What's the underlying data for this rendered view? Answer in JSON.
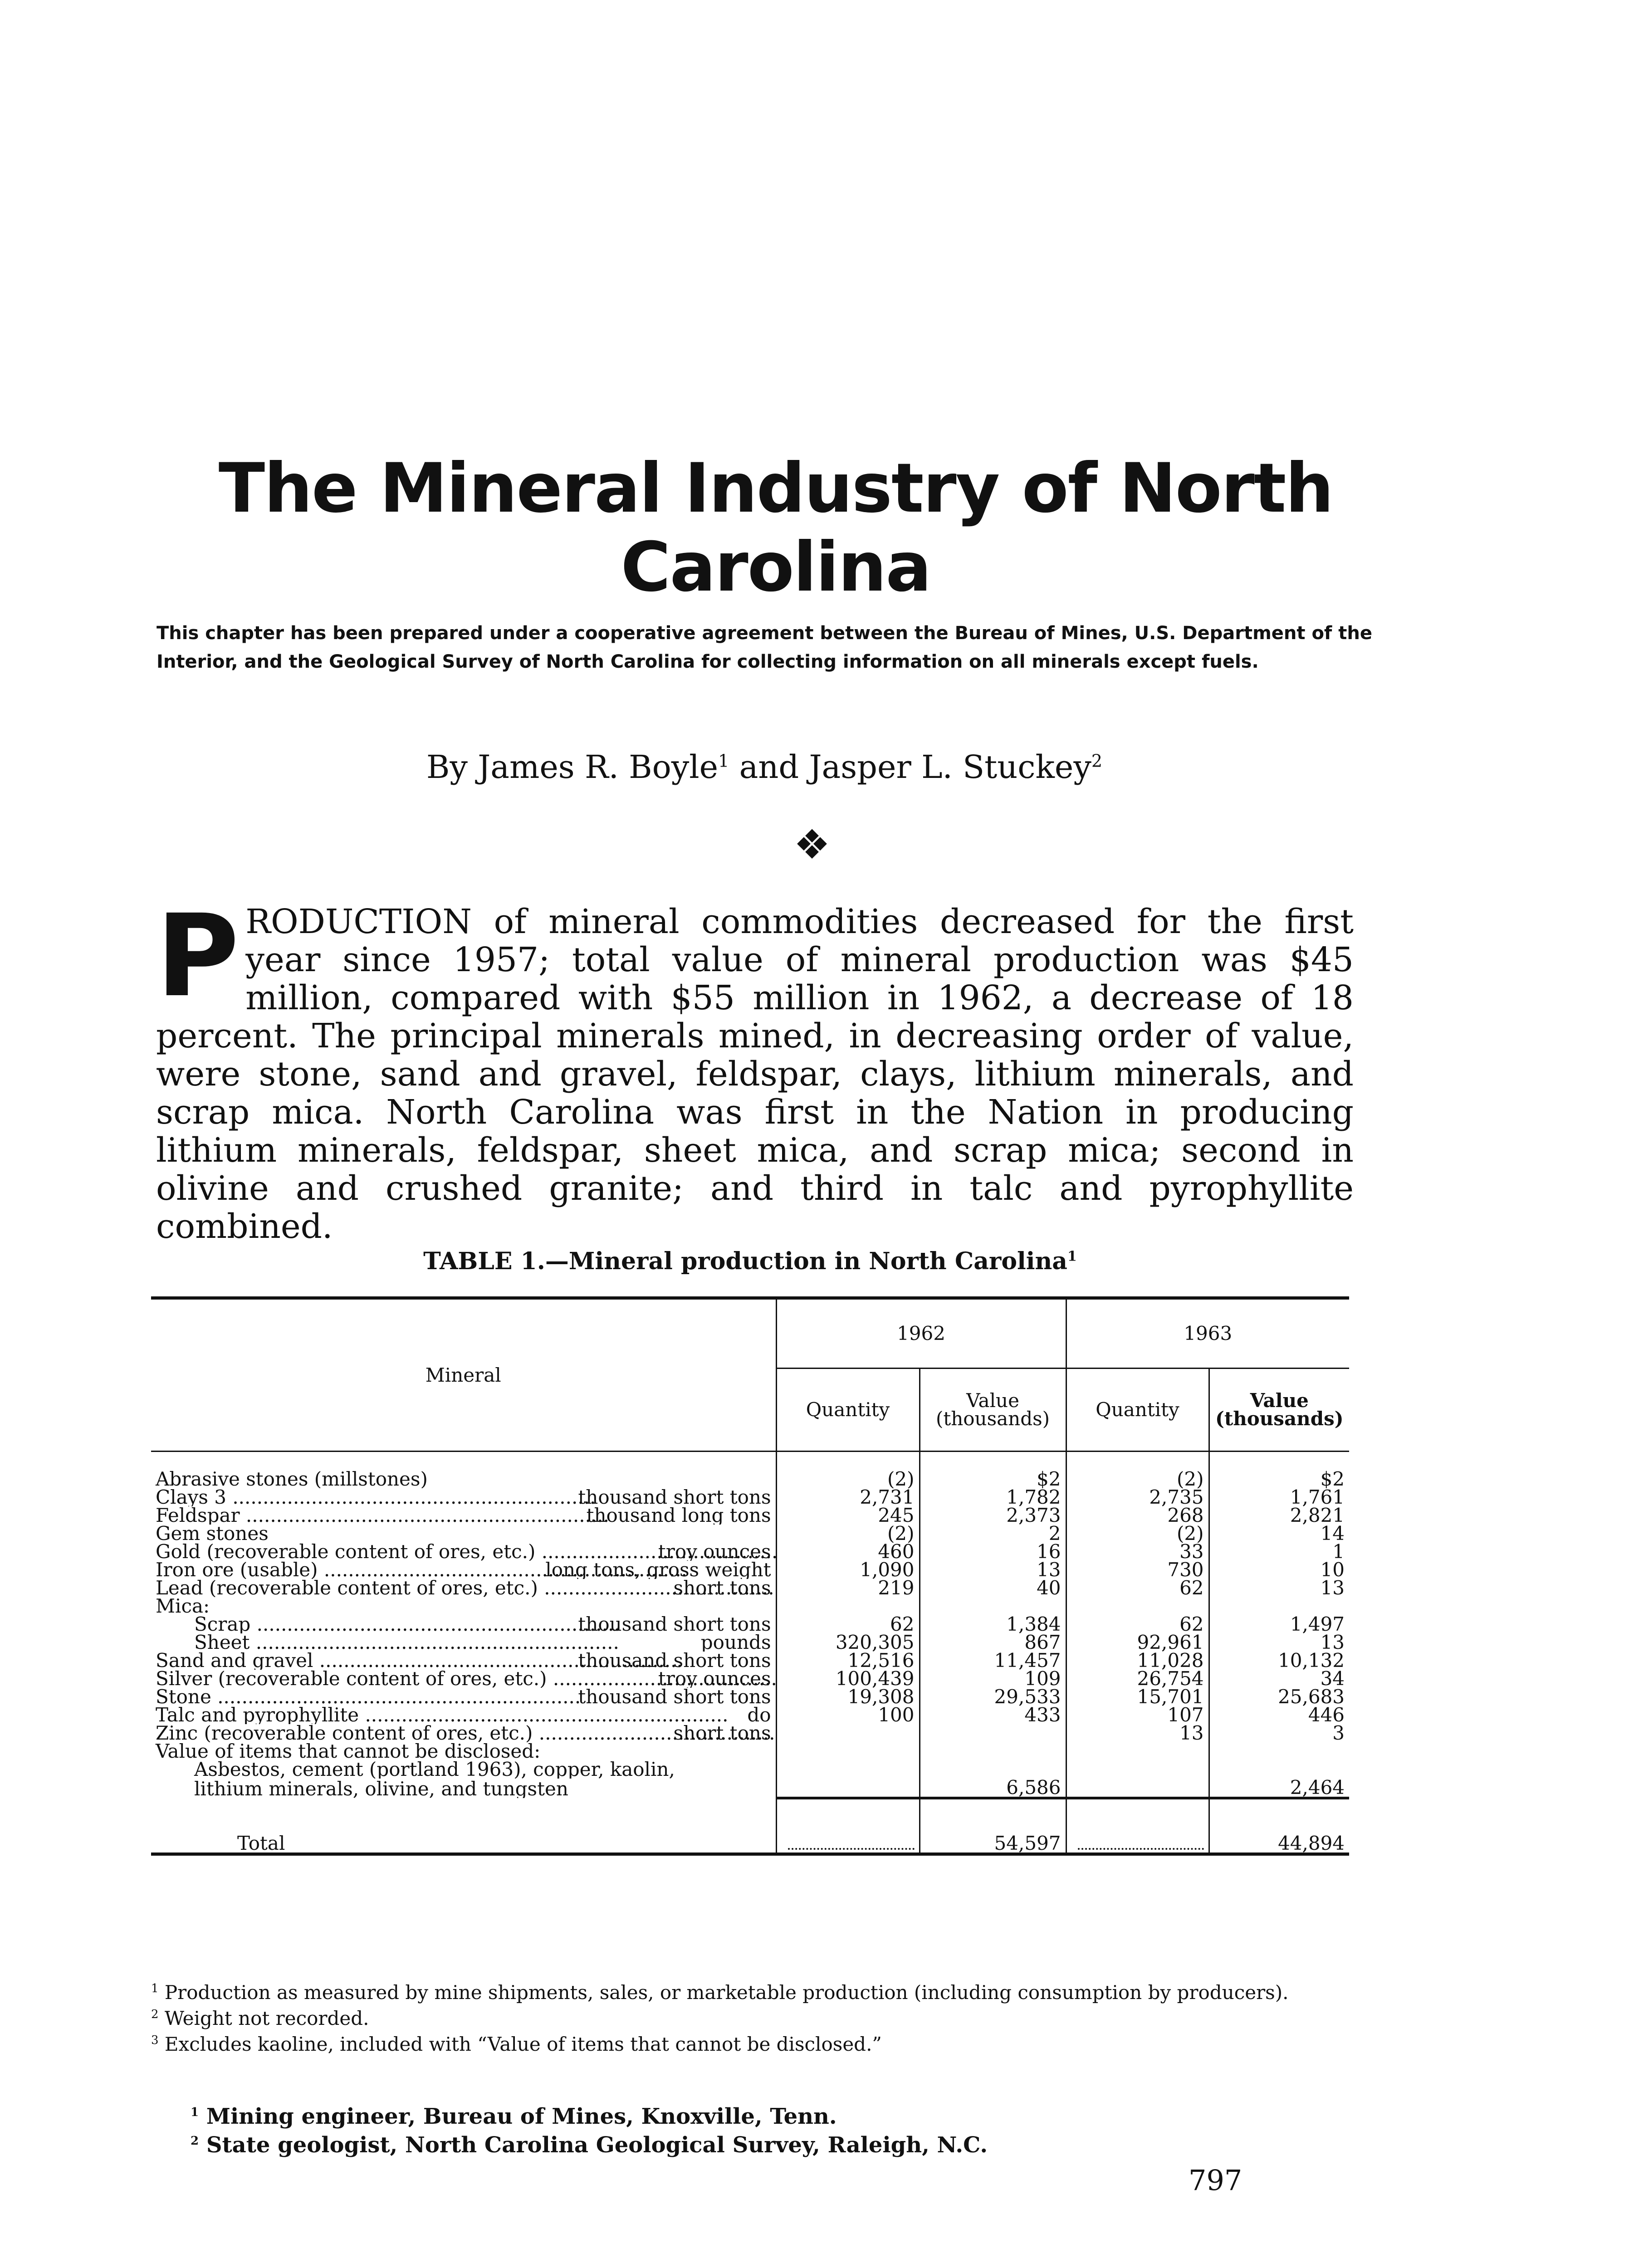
{
  "title": "The Mineral Industry of North Carolina",
  "subtitle": "This chapter has been prepared under a cooperative agreement between the Bureau of Mines, U.S. Department of the Interior, and the Geological Survey of North Carolina for collecting information on all minerals except fuels.",
  "byline": {
    "prefix": "By",
    "author1": "James R. Boyle",
    "mark1": "1",
    "and": "and",
    "author2": "Jasper L. Stuckey",
    "mark2": "2"
  },
  "ornament": "❖",
  "intro": {
    "dropcap": "P",
    "text": "RODUCTION of mineral commodities decreased for the first year since 1957; total value of mineral production was $45 million, compared with $55 million in 1962, a decrease of 18 percent. The principal minerals mined, in decreasing order of value, were stone, sand and gravel, feldspar, clays, lithium minerals, and scrap mica. North Carolina was first in the Nation in producing lithium minerals, feldspar, sheet mica, and scrap mica; second in olivine and crushed granite; and third in talc and pyrophyllite combined."
  },
  "table": {
    "caption": "TABLE 1.—Mineral production in North Carolina",
    "caption_mark": "1",
    "header": {
      "mineral": "Mineral",
      "year1": "1962",
      "year2": "1963",
      "quantity": "Quantity",
      "value": "Value",
      "value_unit": "(thousands)"
    },
    "rows": [
      {
        "mineral": "Abrasive stones (millstones)",
        "unit": "",
        "q1962": "(2)",
        "v1962": "$2",
        "q1963": "(2)",
        "v1963": "$2"
      },
      {
        "mineral": "Clays 3",
        "unit": "thousand short tons",
        "q1962": "2,731",
        "v1962": "1,782",
        "q1963": "2,735",
        "v1963": "1,761"
      },
      {
        "mineral": "Feldspar",
        "unit": "thousand long tons",
        "q1962": "245",
        "v1962": "2,373",
        "q1963": "268",
        "v1963": "2,821"
      },
      {
        "mineral": "Gem stones",
        "unit": "",
        "q1962": "(2)",
        "v1962": "2",
        "q1963": "(2)",
        "v1963": "14"
      },
      {
        "mineral": "Gold (recoverable content of ores, etc.)",
        "unit": "troy ounces",
        "q1962": "460",
        "v1962": "16",
        "q1963": "33",
        "v1963": "1"
      },
      {
        "mineral": "Iron ore (usable)",
        "unit": "long tons, gross weight",
        "q1962": "1,090",
        "v1962": "13",
        "q1963": "730",
        "v1963": "10"
      },
      {
        "mineral": "Lead (recoverable content of ores, etc.)",
        "unit": "short tons",
        "q1962": "219",
        "v1962": "40",
        "q1963": "62",
        "v1963": "13"
      },
      {
        "mineral": "Mica:",
        "unit": "",
        "q1962": "",
        "v1962": "",
        "q1963": "",
        "v1963": ""
      },
      {
        "mineral": "Scrap",
        "unit": "thousand short tons",
        "q1962": "62",
        "v1962": "1,384",
        "q1963": "62",
        "v1963": "1,497",
        "indent": true
      },
      {
        "mineral": "Sheet",
        "unit": "pounds",
        "q1962": "320,305",
        "v1962": "867",
        "q1963": "92,961",
        "v1963": "13",
        "indent": true
      },
      {
        "mineral": "Sand and gravel",
        "unit": "thousand short tons",
        "q1962": "12,516",
        "v1962": "11,457",
        "q1963": "11,028",
        "v1963": "10,132"
      },
      {
        "mineral": "Silver (recoverable content of ores, etc.)",
        "unit": "troy ounces",
        "q1962": "100,439",
        "v1962": "109",
        "q1963": "26,754",
        "v1963": "34"
      },
      {
        "mineral": "Stone",
        "unit": "thousand short tons",
        "q1962": "19,308",
        "v1962": "29,533",
        "q1963": "15,701",
        "v1963": "25,683"
      },
      {
        "mineral": "Talc and pyrophyllite",
        "unit": "do",
        "q1962": "100",
        "v1962": "433",
        "q1963": "107",
        "v1963": "446"
      },
      {
        "mineral": "Zinc (recoverable content of ores, etc.)",
        "unit": "short tons",
        "q1962": "",
        "v1962": "",
        "q1963": "13",
        "v1963": "3"
      },
      {
        "mineral": "Value of items that cannot be disclosed:",
        "unit": "",
        "q1962": "",
        "v1962": "",
        "q1963": "",
        "v1963": ""
      },
      {
        "mineral": "Asbestos, cement (portland 1963), copper, kaolin,",
        "unit": "",
        "q1962": "",
        "v1962": "",
        "q1963": "",
        "v1963": "",
        "indent": true
      },
      {
        "mineral": "lithium minerals, olivine, and tungsten",
        "unit": "",
        "q1962": "",
        "v1962": "6,586",
        "q1963": "",
        "v1963": "2,464",
        "indent": true
      }
    ],
    "total": {
      "label": "Total",
      "v1962": "54,597",
      "v1963": "44,894"
    }
  },
  "footnotes": [
    {
      "mark": "1",
      "text": "Production as measured by mine shipments, sales, or marketable production (including consumption by producers)."
    },
    {
      "mark": "2",
      "text": "Weight not recorded."
    },
    {
      "mark": "3",
      "text": "Excludes kaoline, included with “Value of items that cannot be disclosed.”"
    }
  ],
  "author_notes": [
    {
      "mark": "1",
      "text": "Mining engineer, Bureau of Mines, Knoxville, Tenn."
    },
    {
      "mark": "2",
      "text": "State geologist, North Carolina Geological Survey, Raleigh, N.C."
    }
  ],
  "page_number": "797"
}
